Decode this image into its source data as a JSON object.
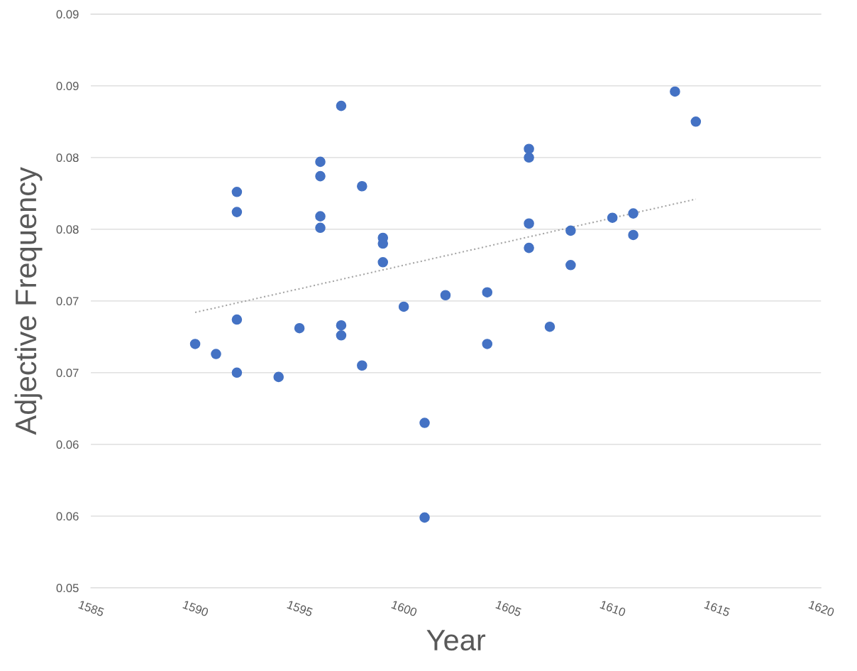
{
  "chart_data": {
    "type": "scatter",
    "xlabel": "Year",
    "ylabel": "Adjective Frequency",
    "xlim": [
      1585,
      1620
    ],
    "xticks": [
      1585,
      1590,
      1595,
      1600,
      1605,
      1610,
      1615,
      1620
    ],
    "ylim": [
      0.05,
      0.09
    ],
    "yticks": [
      {
        "value": 0.05,
        "label": "0.05"
      },
      {
        "value": 0.055,
        "label": "0.06"
      },
      {
        "value": 0.06,
        "label": "0.06"
      },
      {
        "value": 0.065,
        "label": "0.07"
      },
      {
        "value": 0.07,
        "label": "0.07"
      },
      {
        "value": 0.075,
        "label": "0.08"
      },
      {
        "value": 0.08,
        "label": "0.08"
      },
      {
        "value": 0.085,
        "label": "0.09"
      },
      {
        "value": 0.09,
        "label": "0.09"
      }
    ],
    "grid": "y",
    "marker": "circle",
    "legend": false,
    "series": [
      {
        "color": "#4472c4",
        "x": [
          1590,
          1591,
          1592,
          1592,
          1592,
          1592,
          1594,
          1595,
          1596,
          1596,
          1596,
          1596,
          1597,
          1597,
          1597,
          1598,
          1598,
          1599,
          1599,
          1599,
          1600,
          1601,
          1601,
          1602,
          1604,
          1604,
          1606,
          1606,
          1606,
          1606,
          1607,
          1608,
          1608,
          1610,
          1611,
          1611,
          1613,
          1614
        ],
        "values": [
          0.067,
          0.0663,
          0.0776,
          0.0762,
          0.0687,
          0.065,
          0.0647,
          0.0681,
          0.0797,
          0.0787,
          0.0759,
          0.0751,
          0.0836,
          0.0683,
          0.0676,
          0.078,
          0.0655,
          0.0744,
          0.074,
          0.0727,
          0.0696,
          0.0615,
          0.0549,
          0.0704,
          0.0706,
          0.067,
          0.0806,
          0.08,
          0.0754,
          0.0737,
          0.0682,
          0.0749,
          0.0725,
          0.0758,
          0.0761,
          0.0746,
          0.0846,
          0.0825
        ]
      },
      {
        "type": "line",
        "color": "#a6a6a6",
        "line_style": "dotted",
        "marker": "none",
        "x": [
          1590,
          1614
        ],
        "values": [
          0.0692,
          0.0771
        ]
      }
    ]
  }
}
